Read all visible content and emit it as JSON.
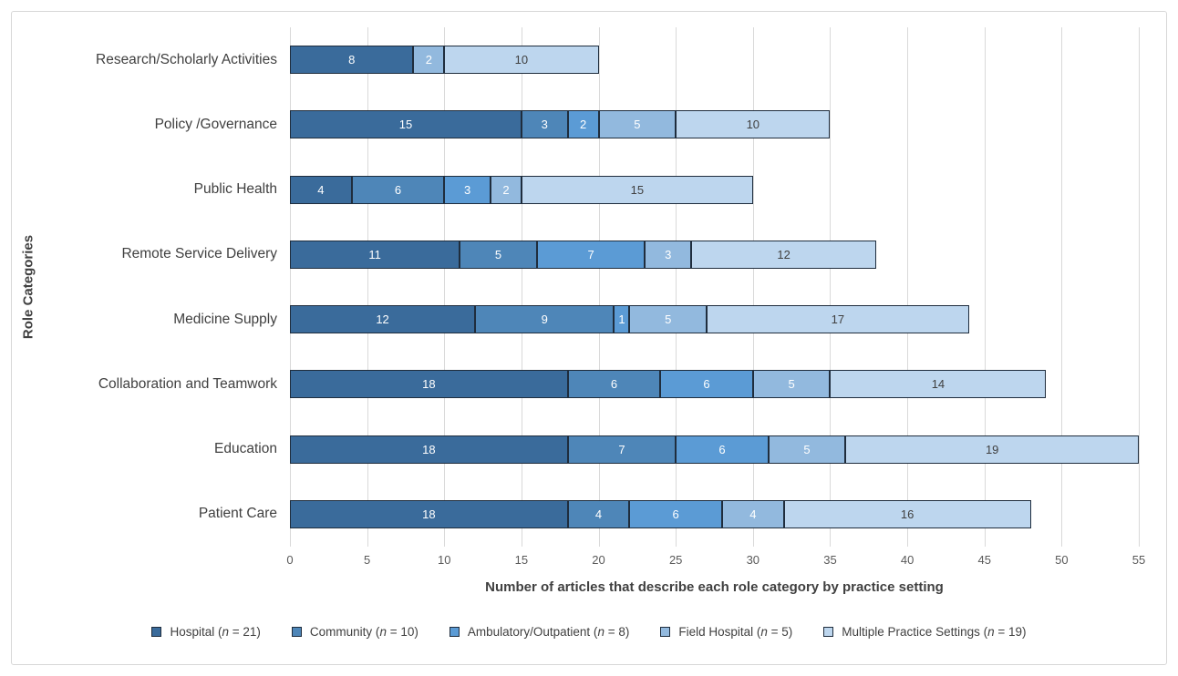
{
  "chart_data": {
    "type": "bar",
    "orientation": "horizontal",
    "stacked": true,
    "xlabel": "Number of articles that describe each role category by practice setting",
    "ylabel": "Role Categories",
    "xlim": [
      0,
      55
    ],
    "xticks": [
      0,
      5,
      10,
      15,
      20,
      25,
      30,
      35,
      40,
      45,
      50,
      55
    ],
    "grid": true,
    "legend_position": "bottom",
    "categories": [
      "Research/Scholarly Activities",
      "Policy /Governance",
      "Public Health",
      "Remote Service Delivery",
      "Medicine Supply",
      "Collaboration and Teamwork",
      "Education",
      "Patient Care"
    ],
    "series": [
      {
        "name": "Hospital",
        "n": "21",
        "color": "#3a6b9b",
        "label_color": "#ffffff",
        "values": [
          8,
          15,
          4,
          11,
          12,
          18,
          18,
          18
        ]
      },
      {
        "name": "Community",
        "n": "10",
        "color": "#4e86b8",
        "label_color": "#ffffff",
        "values": [
          0,
          3,
          6,
          5,
          9,
          6,
          7,
          4
        ]
      },
      {
        "name": "Ambulatory/Outpatient",
        "n": "8",
        "color": "#5b9bd5",
        "label_color": "#ffffff",
        "values": [
          0,
          2,
          3,
          7,
          1,
          6,
          6,
          6
        ]
      },
      {
        "name": "Field Hospital",
        "n": "5",
        "color": "#92b9de",
        "label_color": "#ffffff",
        "values": [
          2,
          5,
          2,
          3,
          5,
          5,
          5,
          4
        ]
      },
      {
        "name": "Multiple Practice Settings",
        "n": "19",
        "color": "#bdd6ee",
        "label_color": "#404040",
        "values": [
          10,
          10,
          15,
          12,
          17,
          14,
          19,
          16
        ]
      }
    ],
    "legend_format": {
      "n_symbol": "n",
      "open": " (",
      "equals": " = ",
      "close": ")"
    },
    "colors": {
      "segment_border": "#1f2d3d",
      "gridline": "#d9d9d9",
      "chart_border": "#d7d7d7",
      "tick_label": "#595959",
      "category_label": "#404040",
      "axis_title": "#404040"
    }
  }
}
